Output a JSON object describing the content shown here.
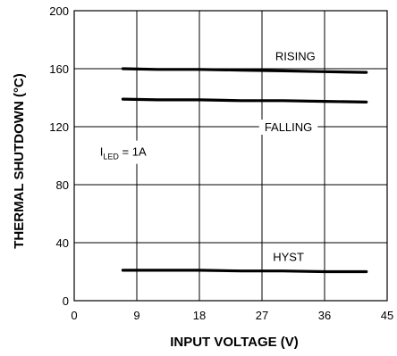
{
  "chart_data": {
    "type": "line",
    "xlabel": "INPUT VOLTAGE (V)",
    "ylabel": "THERMAL SHUTDOWN (°C)",
    "xlim": [
      0,
      45
    ],
    "ylim": [
      0,
      200
    ],
    "xticks": [
      "0",
      "9",
      "18",
      "27",
      "36",
      "45"
    ],
    "yticks": [
      "0",
      "40",
      "80",
      "120",
      "160",
      "200"
    ],
    "grid": true,
    "series": [
      {
        "name": "RISING",
        "x": [
          7,
          12,
          18,
          24,
          30,
          36,
          42
        ],
        "y": [
          160,
          159.5,
          159.5,
          159,
          158.5,
          158,
          157.5
        ]
      },
      {
        "name": "FALLING",
        "x": [
          7,
          12,
          18,
          24,
          30,
          36,
          42
        ],
        "y": [
          139,
          138.5,
          138.5,
          138,
          138,
          137.5,
          137
        ]
      },
      {
        "name": "HYST",
        "x": [
          7,
          12,
          18,
          24,
          30,
          36,
          42
        ],
        "y": [
          21,
          21,
          21,
          20.5,
          20.5,
          20,
          20
        ]
      }
    ],
    "annotations": {
      "condition_main": "I",
      "condition_sub": "LED",
      "condition_value": " = 1A"
    }
  }
}
